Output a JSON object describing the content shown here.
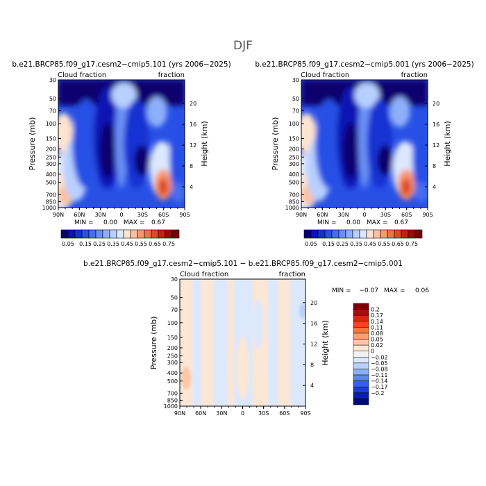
{
  "figure_title": "DJF",
  "chart_data": [
    {
      "type": "heatmap",
      "title": "b.e21.BRCP85.f09_g17.cesm2−cmip5.101 (yrs 2006−2025)",
      "left_label": "Cloud fraction",
      "right_label": "fraction",
      "ylabel": "Pressure (mb)",
      "ylabel_right": "Height (km)",
      "x_ticks": [
        "90N",
        "60N",
        "30N",
        "0",
        "30S",
        "60S",
        "90S"
      ],
      "y_ticks": [
        "1000",
        "850",
        "700",
        "500",
        "400",
        "300",
        "250",
        "200",
        "150",
        "100",
        "70",
        "50",
        "30"
      ],
      "y_ticks_right": [
        "4",
        "8",
        "12",
        "16",
        "20"
      ],
      "stats": {
        "min_label": "MIN =",
        "min": "0.00",
        "max_label": "MAX =",
        "max": "0.67"
      },
      "min_value": 0.0,
      "max_value": 0.67,
      "colorbar_labels": [
        "0.05",
        "0.15",
        "0.25",
        "0.35",
        "0.45",
        "0.55",
        "0.65",
        "0.75"
      ]
    },
    {
      "type": "heatmap",
      "title": "b.e21.BRCP85.f09_g17.cesm2−cmip5.001 (yrs 2006−2025)",
      "left_label": "Cloud fraction",
      "right_label": "fraction",
      "ylabel": "Pressure (mb)",
      "ylabel_right": "Height (km)",
      "x_ticks": [
        "90N",
        "60N",
        "30N",
        "0",
        "30S",
        "60S",
        "90S"
      ],
      "y_ticks": [
        "1000",
        "850",
        "700",
        "500",
        "400",
        "300",
        "250",
        "200",
        "150",
        "100",
        "70",
        "50",
        "30"
      ],
      "y_ticks_right": [
        "4",
        "8",
        "12",
        "16",
        "20"
      ],
      "stats": {
        "min_label": "MIN =",
        "min": "0.00",
        "max_label": "MAX =",
        "max": "0.67"
      },
      "min_value": 0.0,
      "max_value": 0.67,
      "colorbar_labels": [
        "0.05",
        "0.15",
        "0.25",
        "0.35",
        "0.45",
        "0.55",
        "0.65",
        "0.75"
      ]
    },
    {
      "type": "heatmap",
      "title": "b.e21.BRCP85.f09_g17.cesm2−cmip5.101 − b.e21.BRCP85.f09_g17.cesm2−cmip5.001",
      "left_label": "Cloud fraction",
      "right_label": "fraction",
      "ylabel": "Pressure (mb)",
      "ylabel_right": "Height (km)",
      "x_ticks": [
        "90N",
        "60N",
        "30N",
        "0",
        "30S",
        "60S",
        "90S"
      ],
      "y_ticks": [
        "1000",
        "850",
        "700",
        "500",
        "400",
        "300",
        "250",
        "200",
        "150",
        "100",
        "70",
        "50",
        "30"
      ],
      "y_ticks_right": [
        "4",
        "8",
        "12",
        "16",
        "20"
      ],
      "stats": {
        "min_label": "MIN =",
        "min": "−0.07",
        "max_label": "MAX =",
        "max": "0.06"
      },
      "min_value": -0.07,
      "max_value": 0.06,
      "colorbar_labels": [
        "0.2",
        "0.17",
        "0.14",
        "0.11",
        "0.08",
        "0.05",
        "0.02",
        "0",
        "−0.02",
        "−0.05",
        "−0.08",
        "−0.11",
        "−0.14",
        "−0.17",
        "−0.2"
      ]
    }
  ],
  "colors": {
    "abs_palette": [
      "#08006e",
      "#0a14b4",
      "#1432d2",
      "#2850e6",
      "#466ef0",
      "#6a90f5",
      "#8eb0fa",
      "#b8d0ff",
      "#dde8ff",
      "#fde4d0",
      "#fcc0a0",
      "#f89870",
      "#f07048",
      "#e04828",
      "#c82010",
      "#a00808",
      "#780000"
    ],
    "diff_palette": [
      "#7a0000",
      "#a80c0c",
      "#d02a14",
      "#f0461e",
      "#f5783e",
      "#f9a070",
      "#fcc8a6",
      "#fce6d4",
      "#f2f2f2",
      "#dce8fc",
      "#b8d0fa",
      "#8cb0f7",
      "#5c86f2",
      "#3860ea",
      "#1c3ed8",
      "#0a1eb0",
      "#000a7c"
    ]
  }
}
